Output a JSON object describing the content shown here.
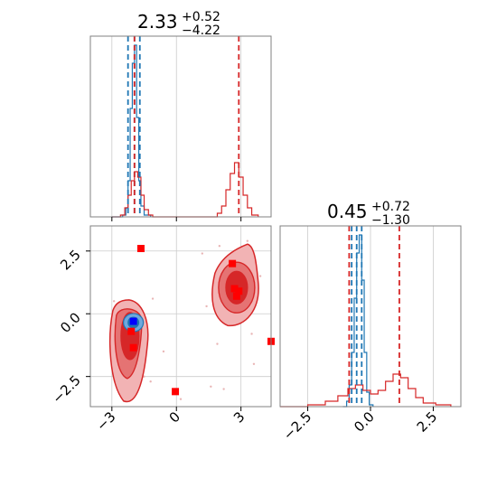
{
  "colors": {
    "blue": "#1f77b4",
    "red": "#d62728",
    "marker_blue": "#0000ff",
    "marker_red": "#ff0000",
    "grid": "#cccccc"
  },
  "chart_data": {
    "type": "corner",
    "panels": [
      {
        "id": "p0-hist",
        "type": "histogram",
        "title": {
          "main": "2.33",
          "sup": "+0.52",
          "sub": "−4.22"
        },
        "xlim": [
          -4.0,
          4.4
        ],
        "x_ticks": [
          -3,
          0,
          3
        ],
        "vlines_blue": [
          -2.25,
          -1.95,
          -1.7
        ],
        "vlines_red": [
          -1.95,
          2.9
        ],
        "series": [
          {
            "color": "blue",
            "bins": [
              [
                -3.0,
                0
              ],
              [
                -2.5,
                0.01
              ],
              [
                -2.35,
                0.05
              ],
              [
                -2.25,
                0.2
              ],
              [
                -2.15,
                0.6
              ],
              [
                -2.05,
                0.85
              ],
              [
                -1.95,
                0.95
              ],
              [
                -1.85,
                0.55
              ],
              [
                -1.75,
                0.2
              ],
              [
                -1.65,
                0.06
              ],
              [
                -1.5,
                0.01
              ],
              [
                -1.2,
                0
              ]
            ]
          },
          {
            "color": "red",
            "bins": [
              [
                -3.0,
                0
              ],
              [
                -2.6,
                0.01
              ],
              [
                -2.4,
                0.05
              ],
              [
                -2.25,
                0.12
              ],
              [
                -2.1,
                0.2
              ],
              [
                -1.95,
                0.25
              ],
              [
                -1.8,
                0.22
              ],
              [
                -1.65,
                0.12
              ],
              [
                -1.5,
                0.04
              ],
              [
                -1.3,
                0.01
              ],
              [
                -1.1,
                0
              ],
              [
                1.7,
                0
              ],
              [
                1.9,
                0.02
              ],
              [
                2.1,
                0.06
              ],
              [
                2.3,
                0.15
              ],
              [
                2.5,
                0.24
              ],
              [
                2.7,
                0.3
              ],
              [
                2.9,
                0.22
              ],
              [
                3.1,
                0.12
              ],
              [
                3.3,
                0.05
              ],
              [
                3.5,
                0.01
              ],
              [
                3.8,
                0
              ]
            ]
          }
        ]
      },
      {
        "id": "p1-2d",
        "type": "scatter2d",
        "xlim": [
          -4.0,
          4.4
        ],
        "ylim": [
          -3.7,
          3.5
        ],
        "x_ticks": [
          -3,
          0,
          3
        ],
        "y_ticks": [
          2.5,
          0.0,
          -2.5
        ],
        "x_tick_labels": [
          "−3",
          "0",
          "3"
        ],
        "y_tick_labels": [
          "2.5",
          "0.0",
          "−2.5"
        ],
        "red_markers": [
          [
            -1.65,
            2.6
          ],
          [
            -0.05,
            -3.1
          ],
          [
            4.4,
            -1.1
          ],
          [
            2.6,
            2.0
          ],
          [
            2.7,
            1.0
          ],
          [
            2.9,
            0.9
          ],
          [
            2.8,
            0.7
          ],
          [
            -2.1,
            -0.7
          ],
          [
            -2.0,
            -1.35
          ]
        ],
        "blue_marker": [
          -2.0,
          -0.3
        ],
        "blobs": [
          {
            "center": [
              -2.2,
              -0.6
            ],
            "color": "red",
            "label": "red-cluster-left"
          },
          {
            "center": [
              2.8,
              0.9
            ],
            "color": "red",
            "label": "red-cluster-right"
          },
          {
            "center": [
              -2.0,
              -0.35
            ],
            "color": "blue",
            "label": "blue-cluster"
          }
        ]
      },
      {
        "id": "p2-hist",
        "type": "histogram",
        "title": {
          "main": "0.45",
          "sup": "+0.72",
          "sub": "−1.30"
        },
        "xlim": [
          -3.6,
          3.6
        ],
        "x_ticks": [
          -2.5,
          0.0,
          2.5
        ],
        "x_tick_labels": [
          "−2.5",
          "0.0",
          "2.5"
        ],
        "vlines_blue": [
          -0.75,
          -0.55,
          -0.35
        ],
        "vlines_red": [
          -0.85,
          1.15
        ],
        "series": [
          {
            "color": "blue",
            "bins": [
              [
                -1.1,
                0
              ],
              [
                -0.95,
                0.03
              ],
              [
                -0.85,
                0.12
              ],
              [
                -0.75,
                0.3
              ],
              [
                -0.65,
                0.6
              ],
              [
                -0.55,
                0.85
              ],
              [
                -0.45,
                0.95
              ],
              [
                -0.35,
                0.7
              ],
              [
                -0.25,
                0.3
              ],
              [
                -0.15,
                0.08
              ],
              [
                -0.05,
                0.01
              ],
              [
                0.1,
                0
              ]
            ]
          },
          {
            "color": "red",
            "bins": [
              [
                -3.6,
                0
              ],
              [
                -2.5,
                0.01
              ],
              [
                -1.8,
                0.03
              ],
              [
                -1.3,
                0.06
              ],
              [
                -0.9,
                0.1
              ],
              [
                -0.6,
                0.12
              ],
              [
                -0.3,
                0.09
              ],
              [
                0.0,
                0.07
              ],
              [
                0.3,
                0.09
              ],
              [
                0.6,
                0.14
              ],
              [
                0.9,
                0.18
              ],
              [
                1.2,
                0.16
              ],
              [
                1.5,
                0.1
              ],
              [
                1.8,
                0.05
              ],
              [
                2.1,
                0.02
              ],
              [
                2.6,
                0.01
              ],
              [
                3.2,
                0.0
              ]
            ]
          }
        ]
      }
    ]
  }
}
